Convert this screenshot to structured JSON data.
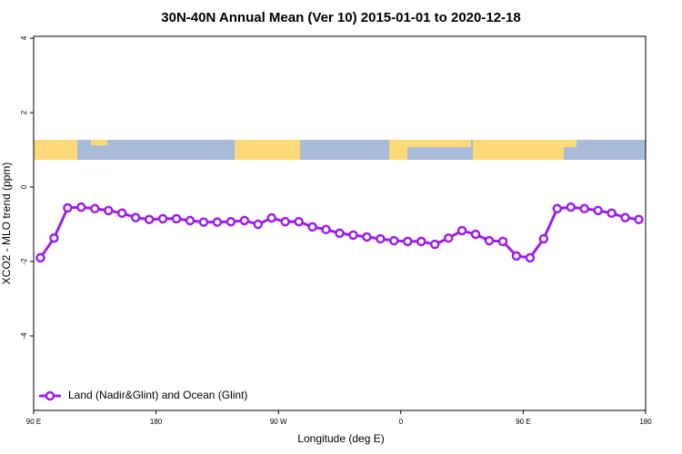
{
  "chart_data": {
    "type": "line",
    "title": "30N-40N Annual Mean (Ver 10)   2015-01-01 to 2020-12-18",
    "x_label": "Longitude (deg E)",
    "y_label": "XCO2 - MLO trend (ppm)",
    "xlim": [
      90,
      540
    ],
    "xticks": [
      {
        "value": 90,
        "label": "90 E"
      },
      {
        "value": 180,
        "label": "180"
      },
      {
        "value": 270,
        "label": "90 W"
      },
      {
        "value": 360,
        "label": "0"
      },
      {
        "value": 450,
        "label": "90 E"
      },
      {
        "value": 540,
        "label": "180"
      }
    ],
    "ylim": [
      -6,
      4.05
    ],
    "yticks": [
      4,
      2,
      0,
      -2,
      -4
    ],
    "legend_position": "bottomleft",
    "x": [
      95,
      105,
      115,
      125,
      135,
      145,
      155,
      165,
      175,
      185,
      195,
      205,
      215,
      225,
      235,
      245,
      255,
      265,
      275,
      285,
      295,
      305,
      315,
      325,
      335,
      345,
      355,
      365,
      375,
      385,
      395,
      405,
      415,
      425,
      435,
      445,
      455,
      465,
      475,
      485,
      495,
      505,
      515,
      525,
      535
    ],
    "series": [
      {
        "name": "Land (Nadir&Glint) and Ocean (Glint)",
        "color": "#9b1fe8",
        "values": [
          -1.9,
          -1.37,
          -0.56,
          -0.54,
          -0.58,
          -0.63,
          -0.7,
          -0.82,
          -0.87,
          -0.85,
          -0.85,
          -0.9,
          -0.94,
          -0.94,
          -0.93,
          -0.9,
          -1.0,
          -0.83,
          -0.93,
          -0.93,
          -1.07,
          -1.14,
          -1.24,
          -1.29,
          -1.34,
          -1.39,
          -1.44,
          -1.46,
          -1.46,
          -1.54,
          -1.37,
          -1.17,
          -1.27,
          -1.44,
          -1.46,
          -1.85,
          -1.9,
          -1.39,
          -0.58,
          -0.54,
          -0.58,
          -0.63,
          -0.7,
          -0.82,
          -0.87
        ]
      }
    ]
  }
}
